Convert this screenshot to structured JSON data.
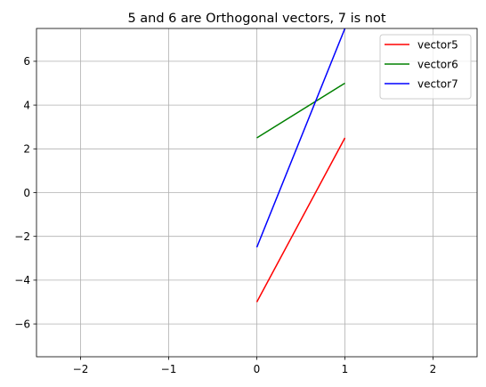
{
  "chart_data": {
    "type": "line",
    "title": "5 and 6 are Orthogonal vectors, 7 is not",
    "xlabel": "",
    "ylabel": "",
    "xlim": [
      -2.5,
      2.5
    ],
    "ylim": [
      -7.5,
      7.5
    ],
    "xticks": [
      -2,
      -1,
      0,
      1,
      2
    ],
    "xtick_labels": [
      "−2",
      "−1",
      "0",
      "1",
      "2"
    ],
    "yticks": [
      -6,
      -4,
      -2,
      0,
      2,
      4,
      6
    ],
    "ytick_labels": [
      "−6",
      "−4",
      "−2",
      "0",
      "2",
      "4",
      "6"
    ],
    "grid": true,
    "legend": "top-right",
    "series": [
      {
        "name": "vector5",
        "color": "#ff0000",
        "x": [
          0,
          1
        ],
        "y": [
          -5,
          2.5
        ]
      },
      {
        "name": "vector6",
        "color": "#008000",
        "x": [
          0,
          1
        ],
        "y": [
          2.5,
          5
        ]
      },
      {
        "name": "vector7",
        "color": "#0000ff",
        "x": [
          0,
          1
        ],
        "y": [
          -2.5,
          7.5
        ]
      }
    ]
  }
}
